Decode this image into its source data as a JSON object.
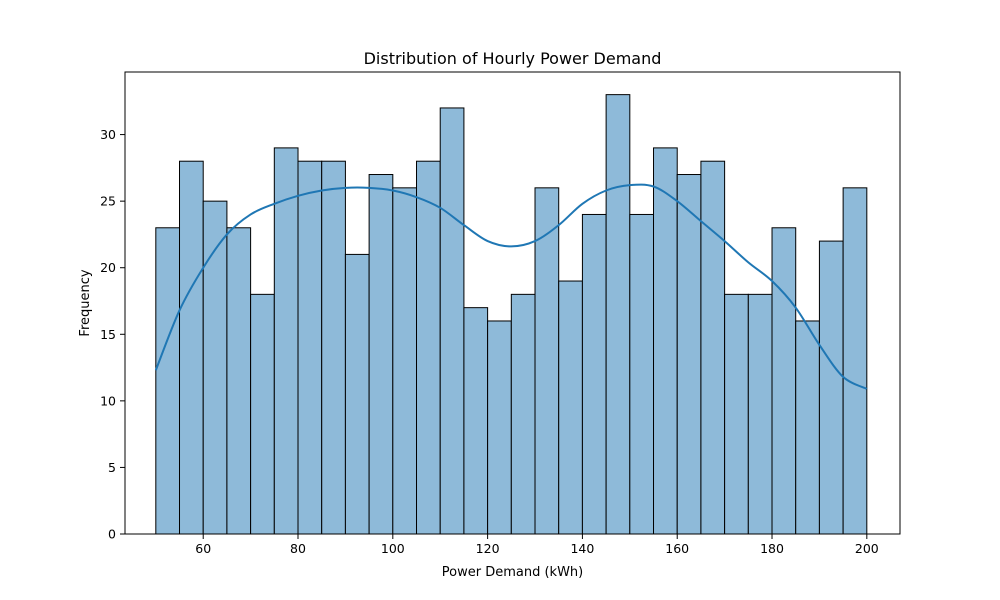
{
  "colors": {
    "bar_fill": "#8ebad9",
    "line": "#1f77b4"
  },
  "chart_data": {
    "type": "bar",
    "subtype": "histogram",
    "title": "Distribution of Hourly Power Demand",
    "xlabel": "Power Demand (kWh)",
    "ylabel": "Frequency",
    "xlim": [
      43.5,
      207.0
    ],
    "ylim": [
      0,
      34.7
    ],
    "grid": false,
    "legend": "none",
    "x_ticks": [
      60,
      80,
      100,
      120,
      140,
      160,
      180,
      200
    ],
    "y_ticks": [
      0,
      5,
      10,
      15,
      20,
      25,
      30
    ],
    "bins": [
      {
        "start": 50,
        "end": 55,
        "value": 23
      },
      {
        "start": 55,
        "end": 60,
        "value": 28
      },
      {
        "start": 60,
        "end": 65,
        "value": 25
      },
      {
        "start": 65,
        "end": 70,
        "value": 23
      },
      {
        "start": 70,
        "end": 75,
        "value": 18
      },
      {
        "start": 75,
        "end": 80,
        "value": 29
      },
      {
        "start": 80,
        "end": 85,
        "value": 28
      },
      {
        "start": 85,
        "end": 90,
        "value": 28
      },
      {
        "start": 90,
        "end": 95,
        "value": 21
      },
      {
        "start": 95,
        "end": 100,
        "value": 27
      },
      {
        "start": 100,
        "end": 105,
        "value": 26
      },
      {
        "start": 105,
        "end": 110,
        "value": 28
      },
      {
        "start": 110,
        "end": 115,
        "value": 32
      },
      {
        "start": 115,
        "end": 120,
        "value": 17
      },
      {
        "start": 120,
        "end": 125,
        "value": 16
      },
      {
        "start": 125,
        "end": 130,
        "value": 18
      },
      {
        "start": 130,
        "end": 135,
        "value": 26
      },
      {
        "start": 135,
        "end": 140,
        "value": 19
      },
      {
        "start": 140,
        "end": 145,
        "value": 24
      },
      {
        "start": 145,
        "end": 150,
        "value": 33
      },
      {
        "start": 150,
        "end": 155,
        "value": 24
      },
      {
        "start": 155,
        "end": 160,
        "value": 29
      },
      {
        "start": 160,
        "end": 165,
        "value": 27
      },
      {
        "start": 165,
        "end": 170,
        "value": 28
      },
      {
        "start": 170,
        "end": 175,
        "value": 18
      },
      {
        "start": 175,
        "end": 180,
        "value": 18
      },
      {
        "start": 180,
        "end": 185,
        "value": 23
      },
      {
        "start": 185,
        "end": 190,
        "value": 16
      },
      {
        "start": 190,
        "end": 195,
        "value": 22
      },
      {
        "start": 195,
        "end": 200,
        "value": 26
      }
    ],
    "kde_curve": {
      "x": [
        50,
        55,
        60,
        65,
        70,
        75,
        80,
        85,
        90,
        95,
        100,
        105,
        110,
        115,
        120,
        125,
        130,
        135,
        140,
        145,
        150,
        155,
        160,
        165,
        170,
        175,
        180,
        185,
        190,
        195,
        200
      ],
      "y": [
        12.3,
        16.8,
        20.0,
        22.5,
        24.0,
        24.8,
        25.4,
        25.8,
        26.0,
        26.0,
        25.8,
        25.3,
        24.5,
        23.2,
        22.0,
        21.6,
        22.0,
        23.2,
        24.8,
        25.8,
        26.2,
        26.1,
        25.0,
        23.5,
        22.0,
        20.4,
        19.0,
        17.0,
        14.2,
        11.8,
        10.9
      ]
    }
  }
}
